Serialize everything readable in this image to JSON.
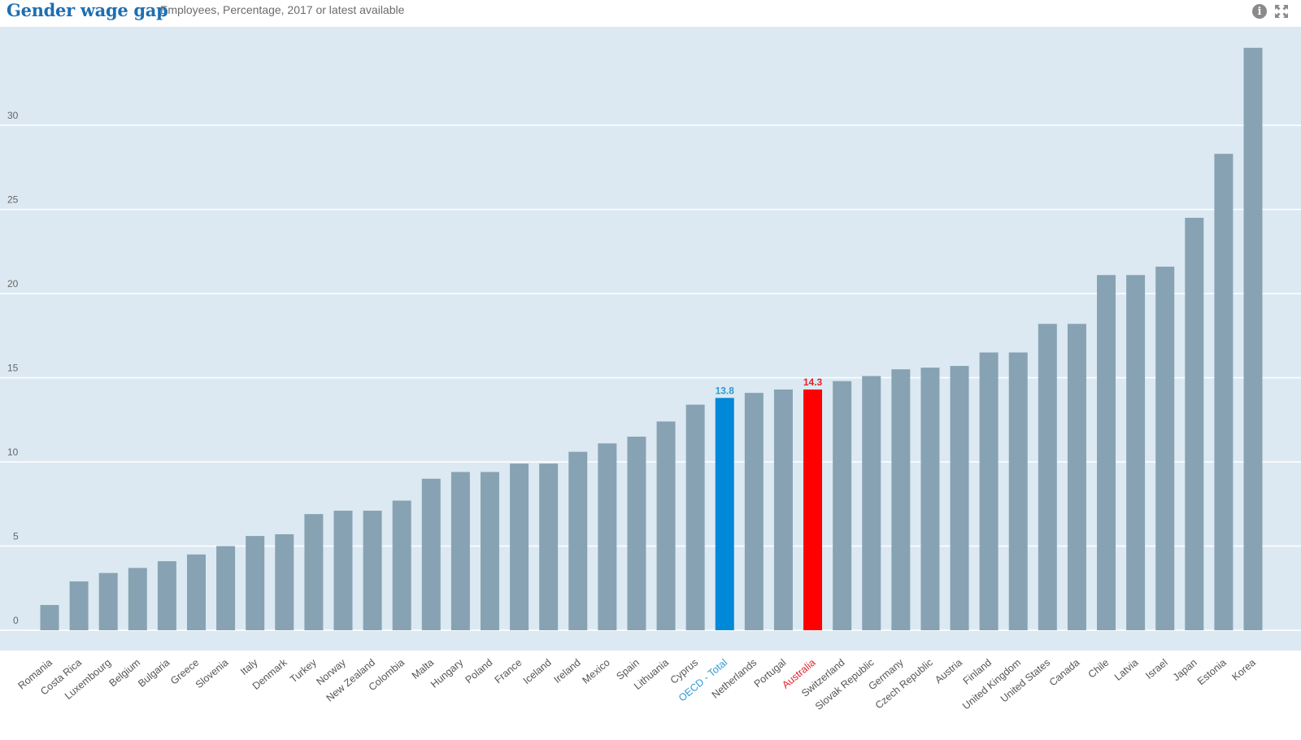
{
  "header": {
    "title": "Gender wage gap",
    "subtitle": "Employees, Percentage, 2017 or latest available",
    "icons": [
      "info-icon",
      "expand-icon",
      "more-icon"
    ]
  },
  "colors": {
    "plot_background": "#dce9f2",
    "gridline": "#ffffff",
    "bar_default": "#87a3b3",
    "bar_oecd": "#0088d9",
    "bar_highlight": "#ff0000",
    "label_default": "#555555",
    "label_oecd": "#2b9ad6",
    "label_highlight": "#e8202a",
    "axis_text": "#666666",
    "title": "#1d6fb2"
  },
  "chart_data": {
    "type": "bar",
    "title": "Gender wage gap",
    "subtitle": "Employees, Percentage, 2017 or latest available",
    "xlabel": "",
    "ylabel": "",
    "ylim": [
      0,
      35
    ],
    "yticks": [
      0,
      5,
      10,
      15,
      20,
      25,
      30
    ],
    "grid": true,
    "legend": "none",
    "categories": [
      "Romania",
      "Costa Rica",
      "Luxembourg",
      "Belgium",
      "Bulgaria",
      "Greece",
      "Slovenia",
      "Italy",
      "Denmark",
      "Turkey",
      "Norway",
      "New Zealand",
      "Colombia",
      "Malta",
      "Hungary",
      "Poland",
      "France",
      "Iceland",
      "Ireland",
      "Mexico",
      "Spain",
      "Lithuania",
      "Cyprus",
      "OECD - Total",
      "Netherlands",
      "Portugal",
      "Australia",
      "Switzerland",
      "Slovak Republic",
      "Germany",
      "Czech Republic",
      "Austria",
      "Finland",
      "United Kingdom",
      "United States",
      "Canada",
      "Chile",
      "Latvia",
      "Israel",
      "Japan",
      "Estonia",
      "Korea"
    ],
    "values": [
      1.5,
      2.9,
      3.4,
      3.7,
      4.1,
      4.5,
      5.0,
      5.6,
      5.7,
      6.9,
      7.1,
      7.1,
      7.7,
      9.0,
      9.4,
      9.4,
      9.9,
      9.9,
      10.6,
      11.1,
      11.5,
      12.4,
      13.4,
      13.8,
      14.1,
      14.3,
      14.3,
      14.8,
      15.1,
      15.5,
      15.6,
      15.7,
      16.5,
      16.5,
      18.2,
      18.2,
      21.1,
      21.1,
      21.6,
      24.5,
      28.3,
      34.6
    ],
    "highlights": {
      "OECD - Total": {
        "role": "oecd",
        "data_label": "13.8"
      },
      "Australia": {
        "role": "highlight",
        "data_label": "14.3"
      }
    }
  }
}
